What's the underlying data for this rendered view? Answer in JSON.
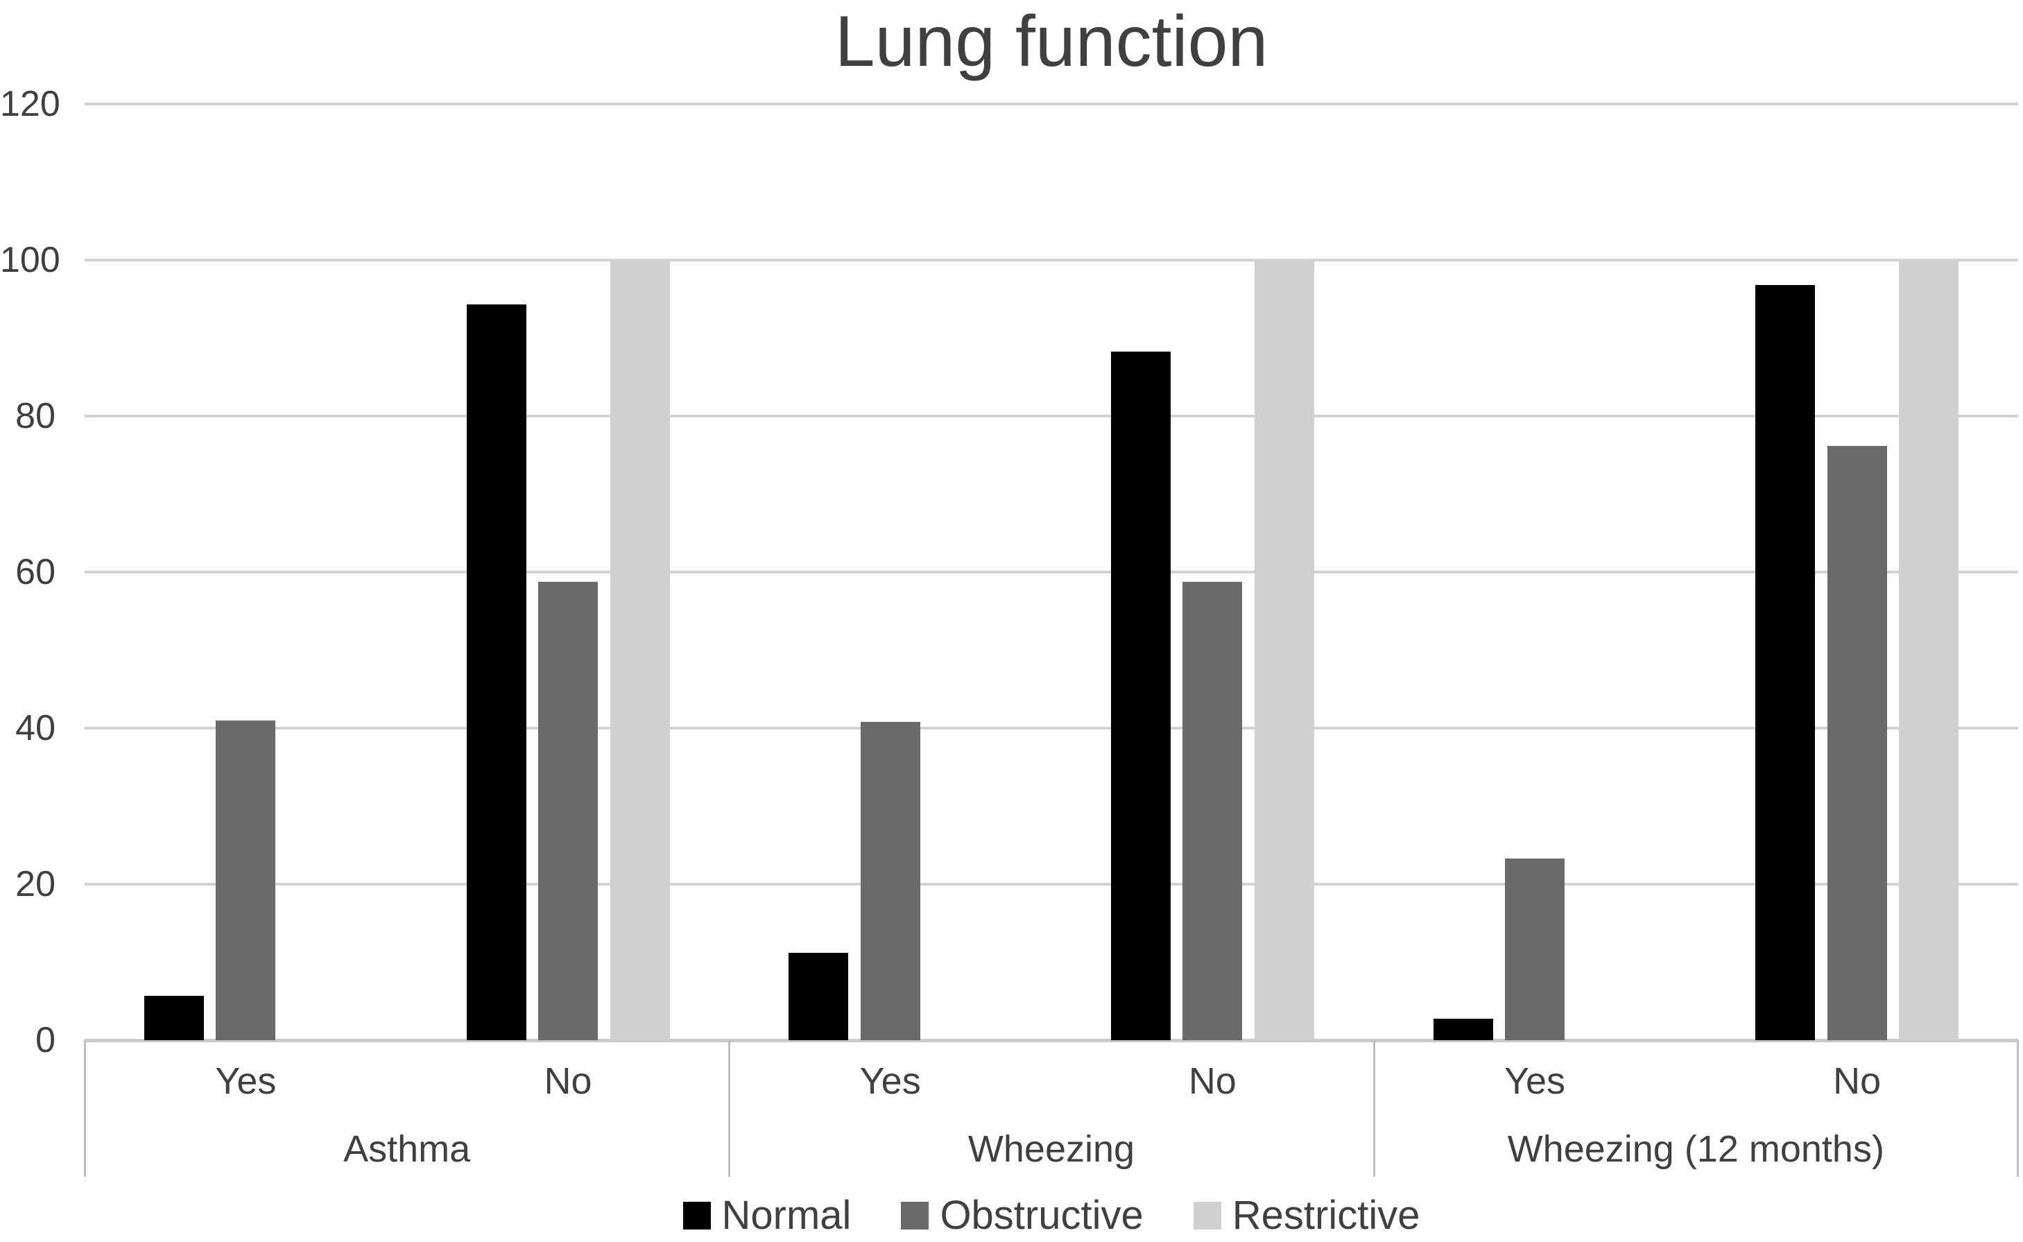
{
  "chart_data": {
    "type": "bar",
    "title": "Lung function",
    "y_axis": {
      "min": 0,
      "max": 120,
      "step": 20,
      "ticks": [
        0,
        20,
        40,
        60,
        80,
        100,
        120
      ]
    },
    "grid": true,
    "legend_position": "bottom",
    "series": [
      {
        "name": "Normal",
        "color": "#000000"
      },
      {
        "name": "Obstructive",
        "color": "#6a6a6a"
      },
      {
        "name": "Restrictive",
        "color": "#d0d0d0"
      }
    ],
    "groups": [
      {
        "label": "Asthma",
        "subgroups": [
          {
            "label": "Yes",
            "values": [
              5.7,
              41.0,
              0
            ]
          },
          {
            "label": "No",
            "values": [
              94.3,
              58.8,
              100
            ]
          }
        ]
      },
      {
        "label": "Wheezing",
        "subgroups": [
          {
            "label": "Yes",
            "values": [
              11.2,
              40.8,
              0
            ]
          },
          {
            "label": "No",
            "values": [
              88.3,
              58.8,
              100
            ]
          }
        ]
      },
      {
        "label": "Wheezing (12 months)",
        "subgroups": [
          {
            "label": "Yes",
            "values": [
              2.8,
              23.3,
              0
            ]
          },
          {
            "label": "No",
            "values": [
              96.8,
              76.2,
              100
            ]
          }
        ]
      }
    ]
  },
  "colors": {
    "text": "#404040",
    "tick_text": "#3f3f3f",
    "gridline": "#d2d2d2",
    "axis_line": "#c9c9c9",
    "separator": "#c0c0c0",
    "background": "#ffffff"
  }
}
